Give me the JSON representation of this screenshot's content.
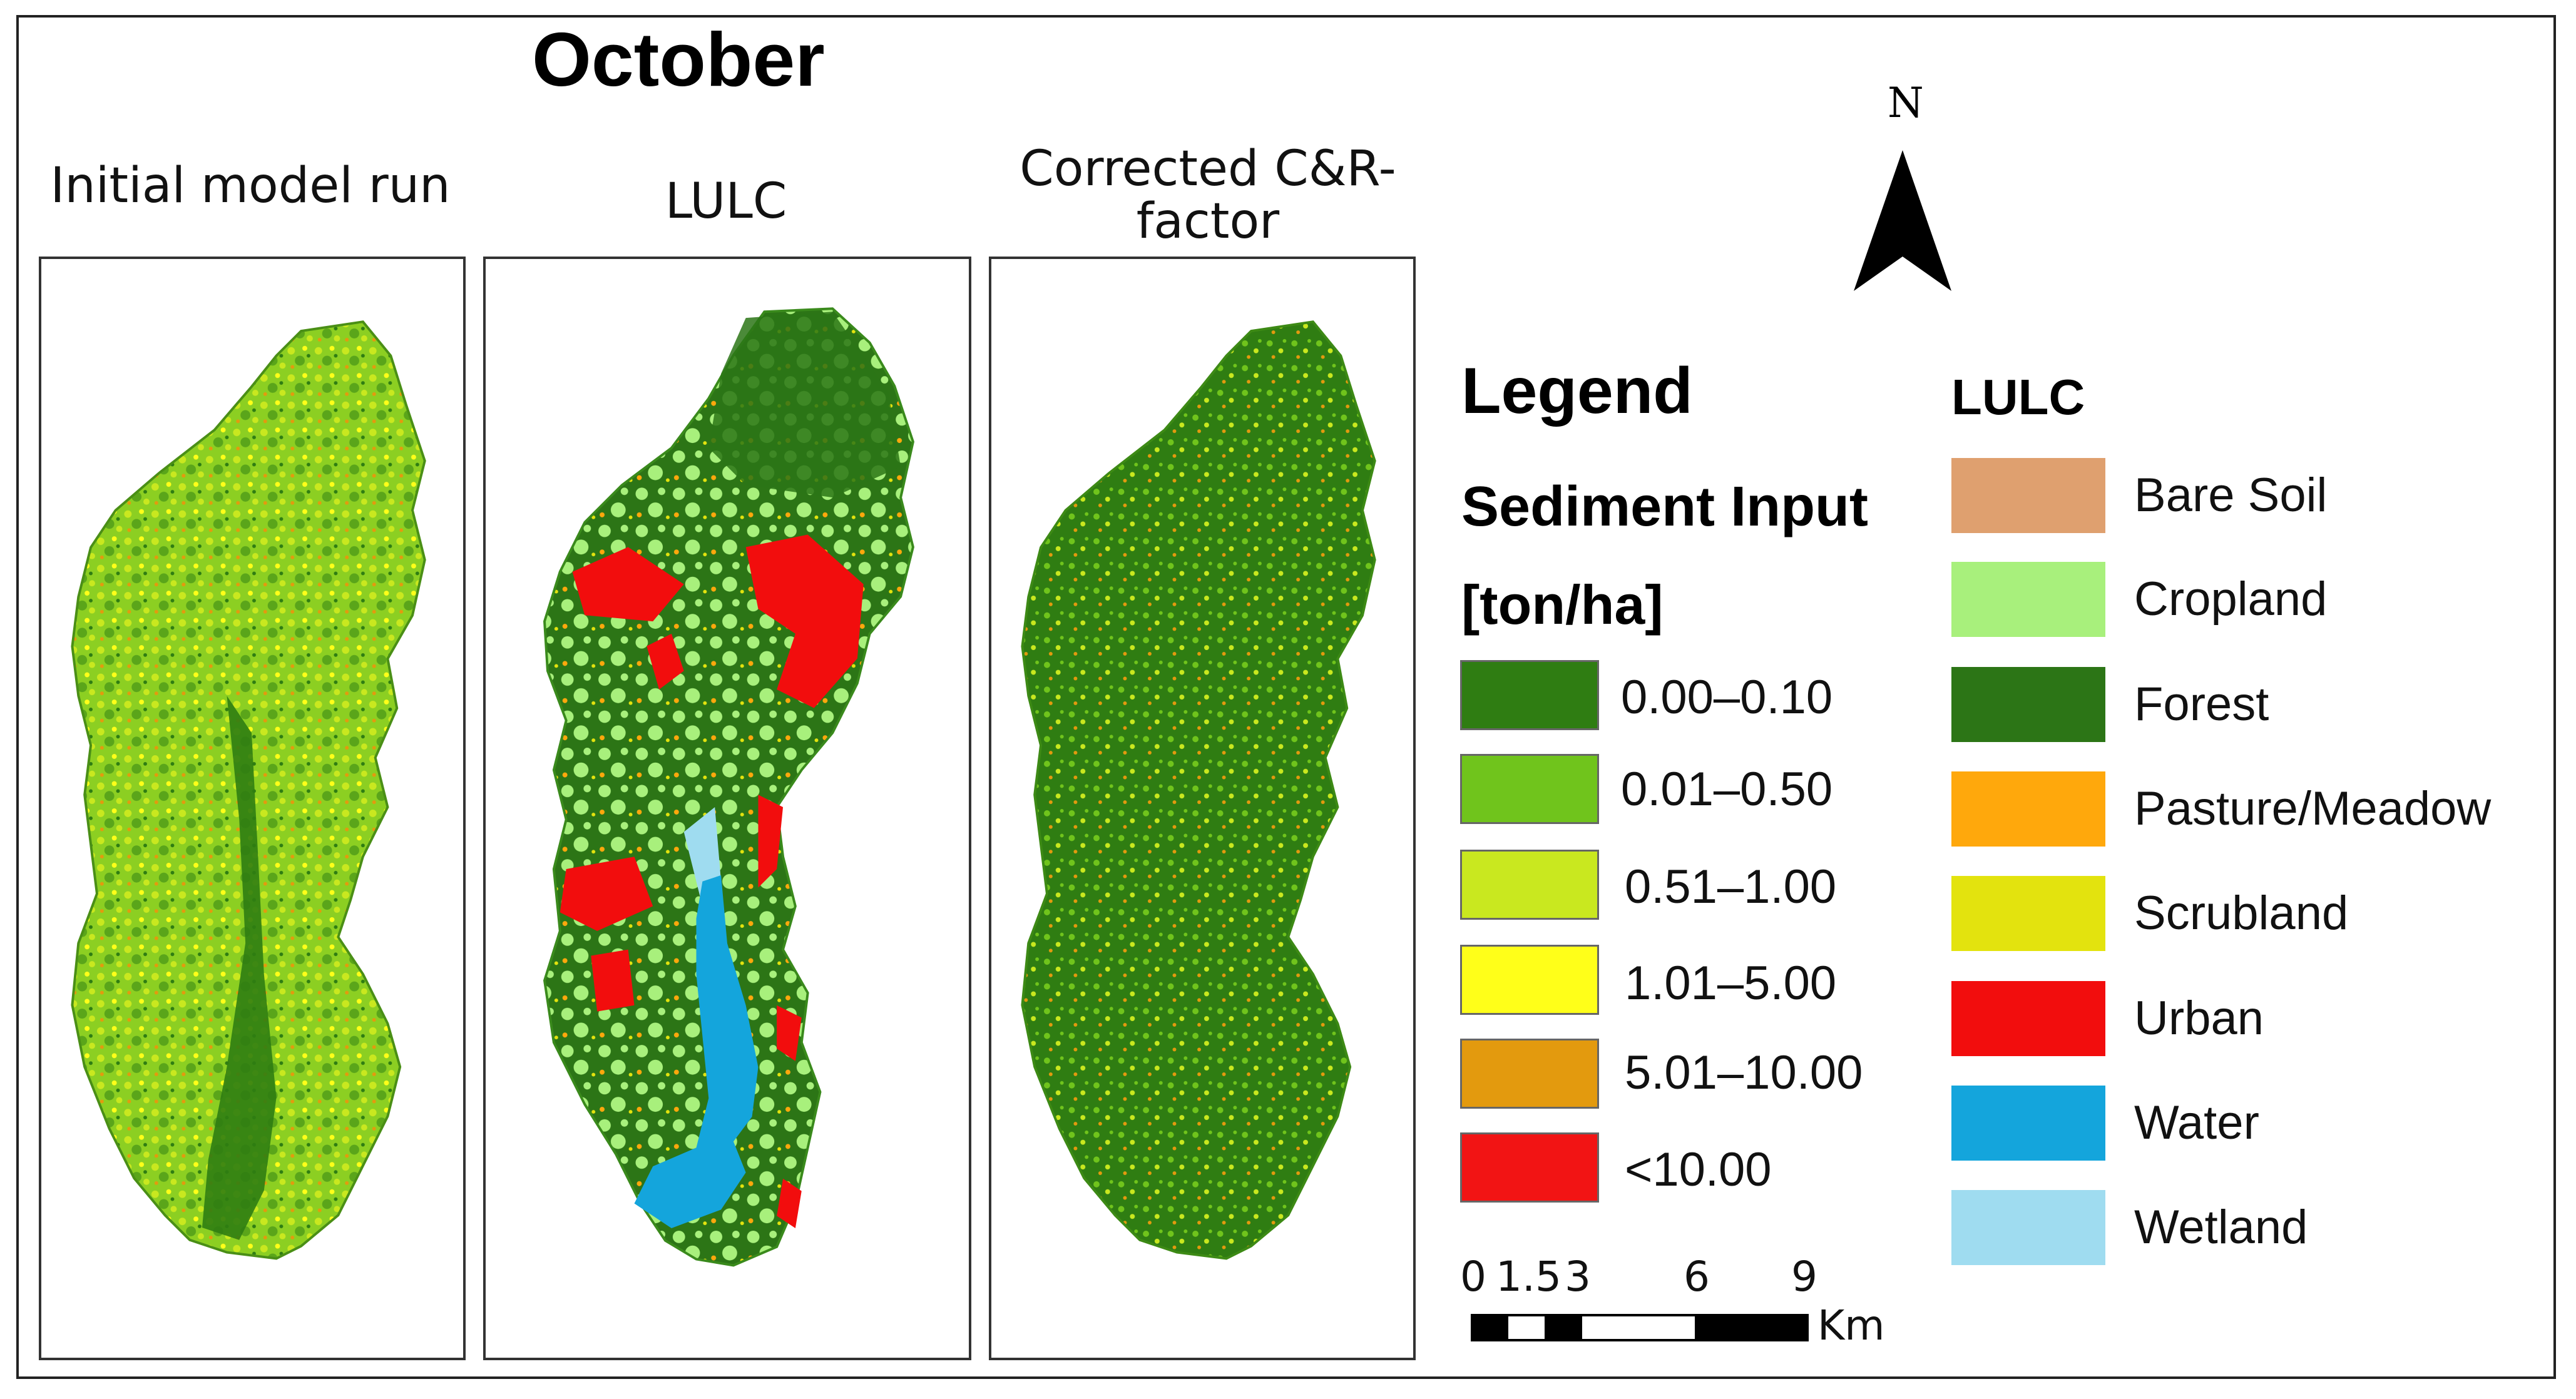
{
  "map": {
    "title": "October",
    "north_label": "N",
    "panels": [
      {
        "label": "Initial model run",
        "key": "initial"
      },
      {
        "label": "LULC",
        "key": "lulc"
      },
      {
        "label": "Corrected C&R-factor",
        "key": "corrected"
      }
    ]
  },
  "legend": {
    "title": "Legend",
    "sediment_title": "Sediment Input",
    "sediment_unit": "[ton/ha]",
    "sediment_classes": [
      {
        "label": "0.00–0.10",
        "color": "#2f7d12"
      },
      {
        "label": "0.01–0.50",
        "color": "#70c41c"
      },
      {
        "label": "0.51–1.00",
        "color": "#c9e81f"
      },
      {
        "label": "1.01–5.00",
        "color": "#ffff19"
      },
      {
        "label": "5.01–10.00",
        "color": "#e39a0e"
      },
      {
        "label": "<10.00",
        "color": "#f21414"
      }
    ],
    "lulc_title": "LULC",
    "lulc_classes": [
      {
        "label": "Bare Soil",
        "color": "#dfa06f"
      },
      {
        "label": "Cropland",
        "color": "#a8f07c"
      },
      {
        "label": "Forest",
        "color": "#2c7516"
      },
      {
        "label": "Pasture/Meadow",
        "color": "#ffa80c"
      },
      {
        "label": "Scrubland",
        "color": "#e3e30e"
      },
      {
        "label": "Urban",
        "color": "#f20d0d"
      },
      {
        "label": "Water",
        "color": "#14a5dc"
      },
      {
        "label": "Wetland",
        "color": "#9fdcf0"
      }
    ]
  },
  "scale_bar": {
    "ticks": [
      "0",
      "1.5",
      "3",
      "6",
      "9"
    ],
    "unit": "Km"
  }
}
